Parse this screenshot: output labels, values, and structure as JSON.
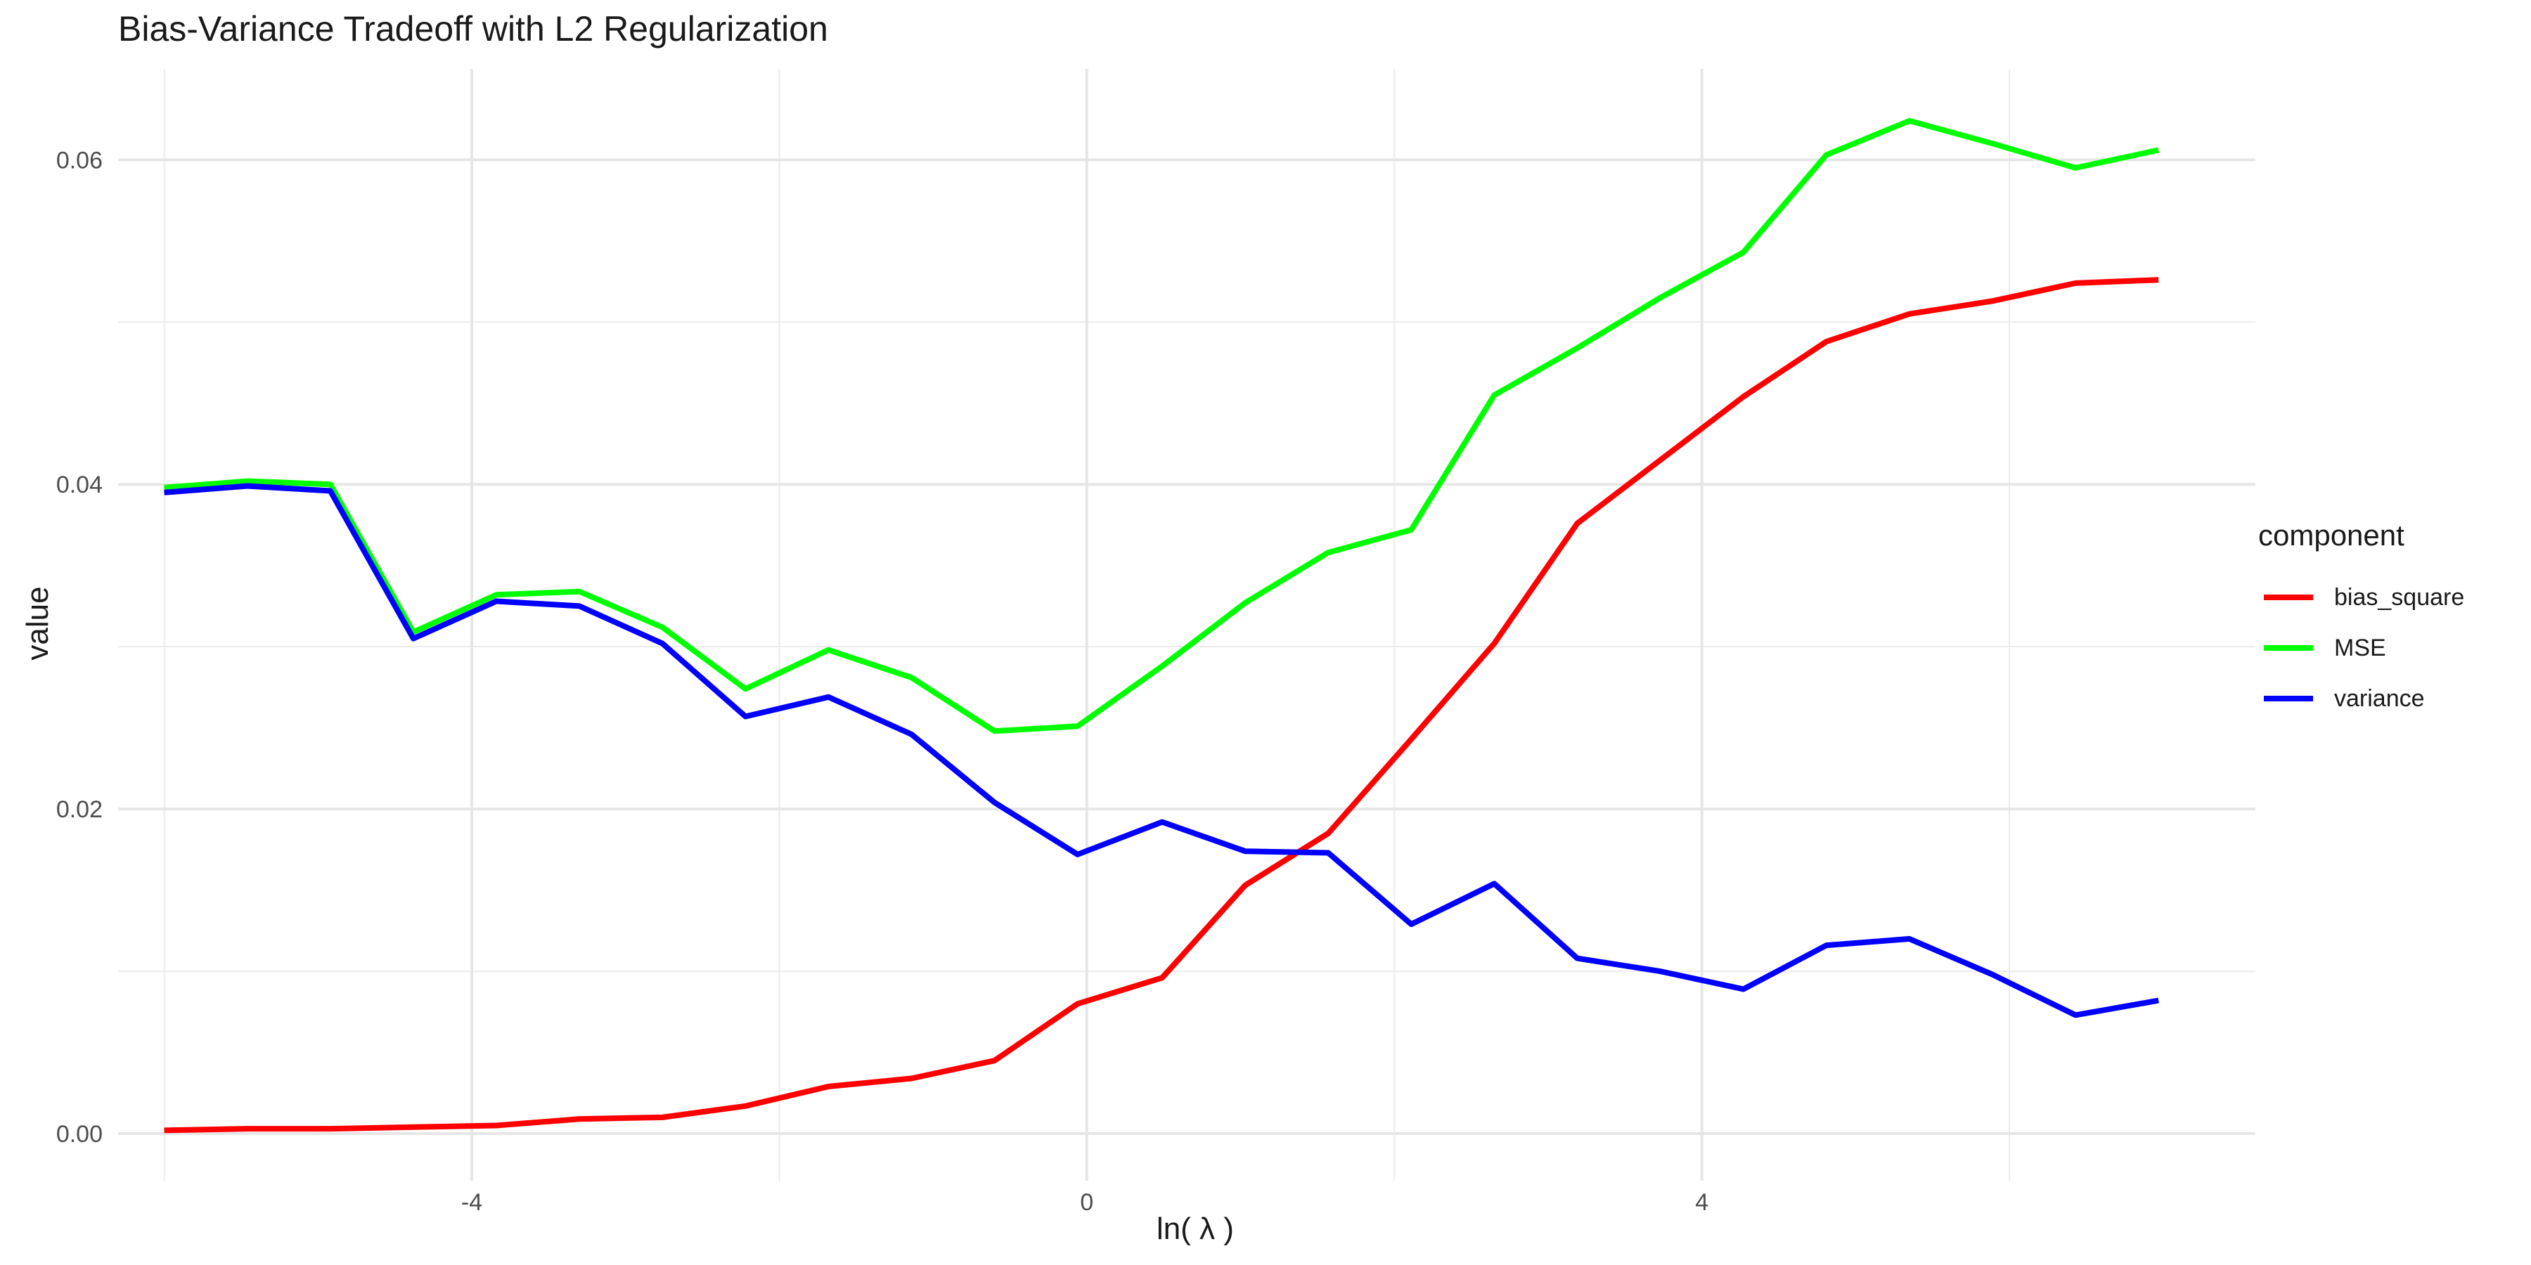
{
  "chart_data": {
    "type": "line",
    "title": "Bias-Variance Tradeoff with L2 Regularization",
    "xlabel": "ln( λ )",
    "ylabel": "value",
    "xlim": [
      -6.3,
      7.6
    ],
    "ylim": [
      -0.0029,
      0.0656
    ],
    "x_ticks": [
      -4,
      0,
      4
    ],
    "y_ticks": [
      0.0,
      0.02,
      0.04,
      0.06
    ],
    "y_tick_labels": [
      "0.00",
      "0.02",
      "0.04",
      "0.06"
    ],
    "grid": true,
    "legend_position": "right",
    "legend_title": "component",
    "x": [
      -6.0,
      -5.46,
      -4.92,
      -4.38,
      -3.84,
      -3.3,
      -2.76,
      -2.22,
      -1.68,
      -1.14,
      -0.6,
      -0.06,
      0.49,
      1.03,
      1.57,
      2.11,
      2.65,
      3.19,
      3.73,
      4.27,
      4.81,
      5.35,
      5.89,
      6.43,
      6.97
    ],
    "series": [
      {
        "name": "bias_square",
        "color": "#ff0000",
        "values": [
          0.0002,
          0.0003,
          0.0003,
          0.0004,
          0.0005,
          0.0009,
          0.001,
          0.0017,
          0.0029,
          0.0034,
          0.0045,
          0.008,
          0.0096,
          0.0153,
          0.0185,
          0.0243,
          0.0302,
          0.0376,
          0.0415,
          0.0454,
          0.0488,
          0.0505,
          0.0513,
          0.0524,
          0.0526
        ]
      },
      {
        "name": "MSE",
        "color": "#00ff00",
        "values": [
          0.0398,
          0.0402,
          0.04,
          0.0309,
          0.0332,
          0.0334,
          0.0312,
          0.0274,
          0.0298,
          0.0281,
          0.0248,
          0.0251,
          0.0288,
          0.0327,
          0.0358,
          0.0372,
          0.0455,
          0.0484,
          0.0515,
          0.0543,
          0.0603,
          0.0624,
          0.061,
          0.0595,
          0.0606
        ]
      },
      {
        "name": "variance",
        "color": "#0000ff",
        "values": [
          0.0395,
          0.0399,
          0.0396,
          0.0305,
          0.0328,
          0.0325,
          0.0302,
          0.0257,
          0.0269,
          0.0246,
          0.0204,
          0.0172,
          0.0192,
          0.0174,
          0.0173,
          0.0129,
          0.0154,
          0.0108,
          0.01,
          0.0089,
          0.0116,
          0.012,
          0.0098,
          0.0073,
          0.0082
        ]
      }
    ]
  }
}
